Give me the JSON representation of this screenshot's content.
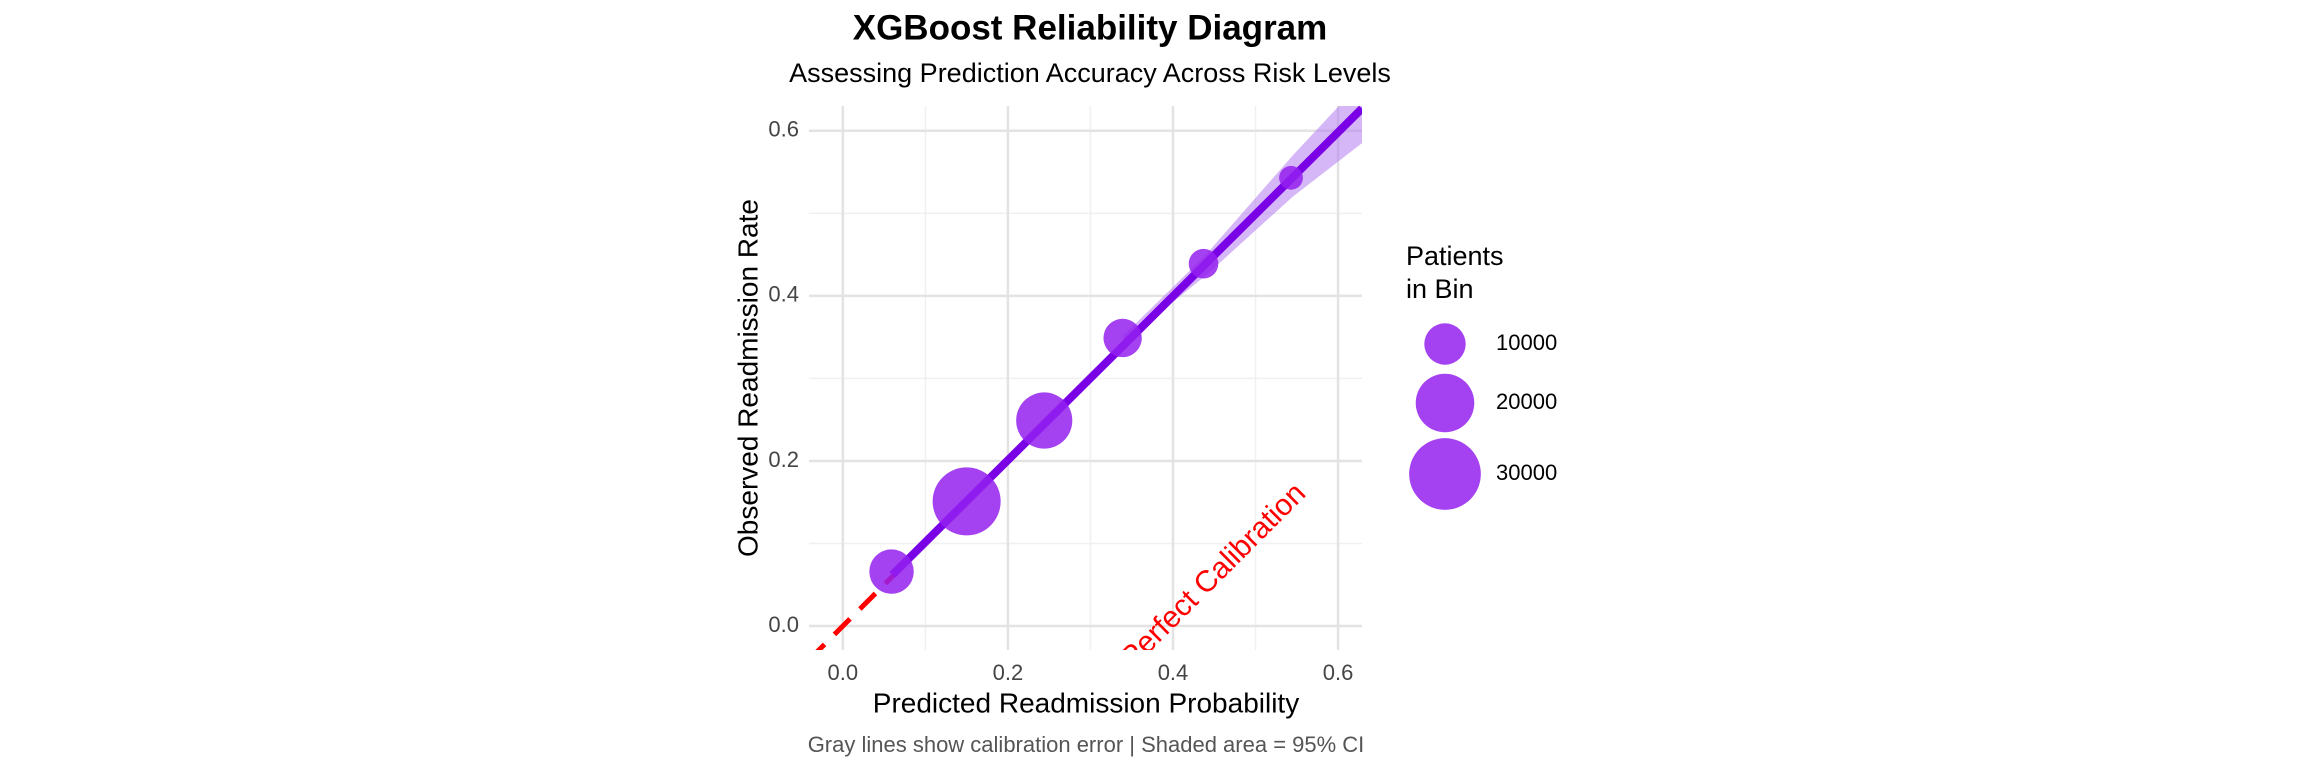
{
  "chart_data": {
    "type": "scatter",
    "title": "XGBoost Reliability Diagram",
    "subtitle": "Assessing Prediction Accuracy Across Risk Levels",
    "x_label": "Predicted Readmission Probability",
    "y_label": "Observed Readmission Rate",
    "caption": "Gray lines show calibration error | Shaded area = 95% CI",
    "xlim": [
      -0.041,
      0.629
    ],
    "ylim": [
      -0.029,
      0.63
    ],
    "xticks": [
      {
        "value": 0,
        "label": "0.0"
      },
      0.2,
      0.4,
      0.6
    ],
    "yticks": [
      {
        "value": 0,
        "label": "0.0"
      },
      0.2,
      0.4,
      0.6
    ],
    "minor_xticks": [
      0.1,
      0.3,
      0.5
    ],
    "minor_yticks": [
      0.1,
      0.3,
      0.5
    ],
    "grid": true,
    "points": {
      "color": "#9420ee",
      "x": [
        0.059,
        0.15,
        0.244,
        0.339,
        0.437,
        0.543
      ],
      "y": [
        0.066,
        0.151,
        0.249,
        0.349,
        0.439,
        0.543
      ],
      "sizes": [
        11500,
        27000,
        18400,
        8600,
        5100,
        3300
      ]
    },
    "fit_line": {
      "color": "#7a00e6",
      "x": [
        0.06,
        0.629
      ],
      "y": [
        0.062,
        0.627
      ]
    },
    "ci_band": {
      "color": "#b27cf0",
      "x": [
        0.34,
        0.44,
        0.545,
        0.629
      ],
      "upper": [
        0.352,
        0.45,
        0.57,
        0.66
      ],
      "lower": [
        0.344,
        0.425,
        0.52,
        0.585
      ]
    },
    "reference_line": {
      "label": "Perfect Calibration",
      "color": "#ff0000"
    },
    "size_legend": {
      "title": [
        "Patients",
        "in Bin"
      ],
      "values": [
        10000,
        20000,
        30000
      ]
    }
  }
}
